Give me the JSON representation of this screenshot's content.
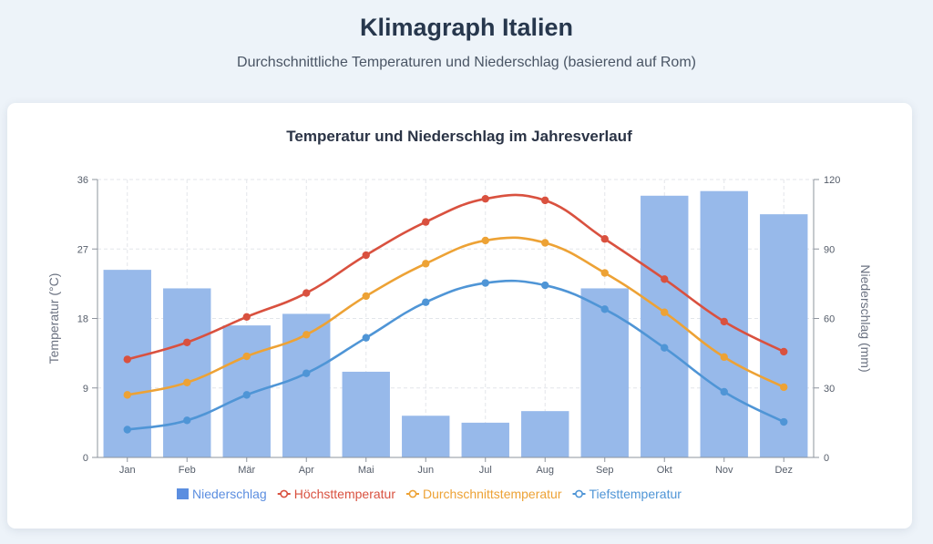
{
  "header": {
    "title": "Klimagraph Italien",
    "subtitle": "Durchschnittliche Temperaturen und Niederschlag (basierend auf Rom)"
  },
  "colors": {
    "precip": "#97b9ea",
    "max": "#d9513f",
    "avg": "#eda235",
    "min": "#4f95d6",
    "grid": "#e3e6ea",
    "axis": "#8e949d"
  },
  "chart_data": {
    "type": "bar",
    "title": "Temperatur und Niederschlag im Jahresverlauf",
    "categories": [
      "Jan",
      "Feb",
      "Mär",
      "Apr",
      "Mai",
      "Jun",
      "Jul",
      "Aug",
      "Sep",
      "Okt",
      "Nov",
      "Dez"
    ],
    "ylabel_left": "Temperatur (°C)",
    "ylabel_right": "Niederschlag (mm)",
    "ylim_left": [
      0,
      36
    ],
    "ylim_right": [
      0,
      120
    ],
    "yticks_left": [
      "0",
      "9",
      "18",
      "27",
      "36"
    ],
    "yticks_right": [
      "0",
      "30",
      "60",
      "90",
      "120"
    ],
    "grid": true,
    "legend_position": "bottom",
    "series": [
      {
        "name": "Niederschlag",
        "type": "bar",
        "axis": "right",
        "color_key": "precip",
        "values": [
          81,
          73,
          57,
          62,
          37,
          18,
          15,
          20,
          73,
          113,
          115,
          105
        ]
      },
      {
        "name": "Höchsttemperatur",
        "type": "line",
        "axis": "left",
        "color_key": "max",
        "values": [
          12.7,
          14.9,
          18.2,
          21.3,
          26.2,
          30.5,
          33.5,
          33.3,
          28.3,
          23.1,
          17.6,
          13.7
        ]
      },
      {
        "name": "Durchschnittstemperatur",
        "type": "line",
        "axis": "left",
        "color_key": "avg",
        "values": [
          8.1,
          9.7,
          13.1,
          15.9,
          20.9,
          25.1,
          28.1,
          27.8,
          23.9,
          18.8,
          13.0,
          9.1
        ]
      },
      {
        "name": "Tiefsttemperatur",
        "type": "line",
        "axis": "left",
        "color_key": "min",
        "values": [
          3.6,
          4.8,
          8.1,
          10.9,
          15.5,
          20.1,
          22.6,
          22.3,
          19.2,
          14.2,
          8.5,
          4.6
        ]
      }
    ]
  }
}
